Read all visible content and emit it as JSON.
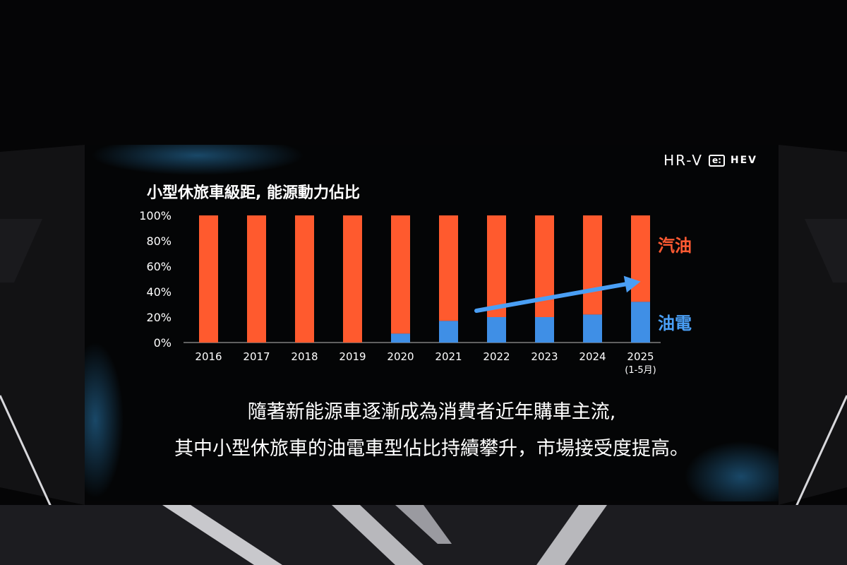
{
  "brand": {
    "model": "HR-V",
    "badge_e": "e:",
    "badge_hev": "HEV"
  },
  "caption": {
    "line1": "隨著新能源車逐漸成為消費者近年購車主流,",
    "line2": "其中小型休旅車的油電車型佔比持續攀升，市場接受度提高。"
  },
  "colors": {
    "gasoline": "#ff5a2e",
    "hybrid": "#3f8fe6",
    "arrow": "#4a9ff5"
  },
  "chart_data": {
    "type": "bar",
    "stacked": true,
    "title": "小型休旅車級距, 能源動力佔比",
    "categories": [
      "2016",
      "2017",
      "2018",
      "2019",
      "2020",
      "2021",
      "2022",
      "2023",
      "2024",
      "2025"
    ],
    "category_sublabels": {
      "2025": "(1-5月)"
    },
    "series": [
      {
        "name": "油電",
        "values": [
          0,
          0,
          0,
          0,
          7,
          17,
          20,
          20,
          22,
          32
        ]
      },
      {
        "name": "汽油",
        "values": [
          100,
          100,
          100,
          100,
          93,
          83,
          80,
          80,
          78,
          68
        ]
      }
    ],
    "ylim": [
      0,
      100
    ],
    "yticks": [
      "0%",
      "20%",
      "40%",
      "60%",
      "80%",
      "100%"
    ],
    "trend_arrow": {
      "from": "2022",
      "to": "2025",
      "from_value": 25,
      "to_value": 48
    },
    "legend_placement": "right"
  }
}
